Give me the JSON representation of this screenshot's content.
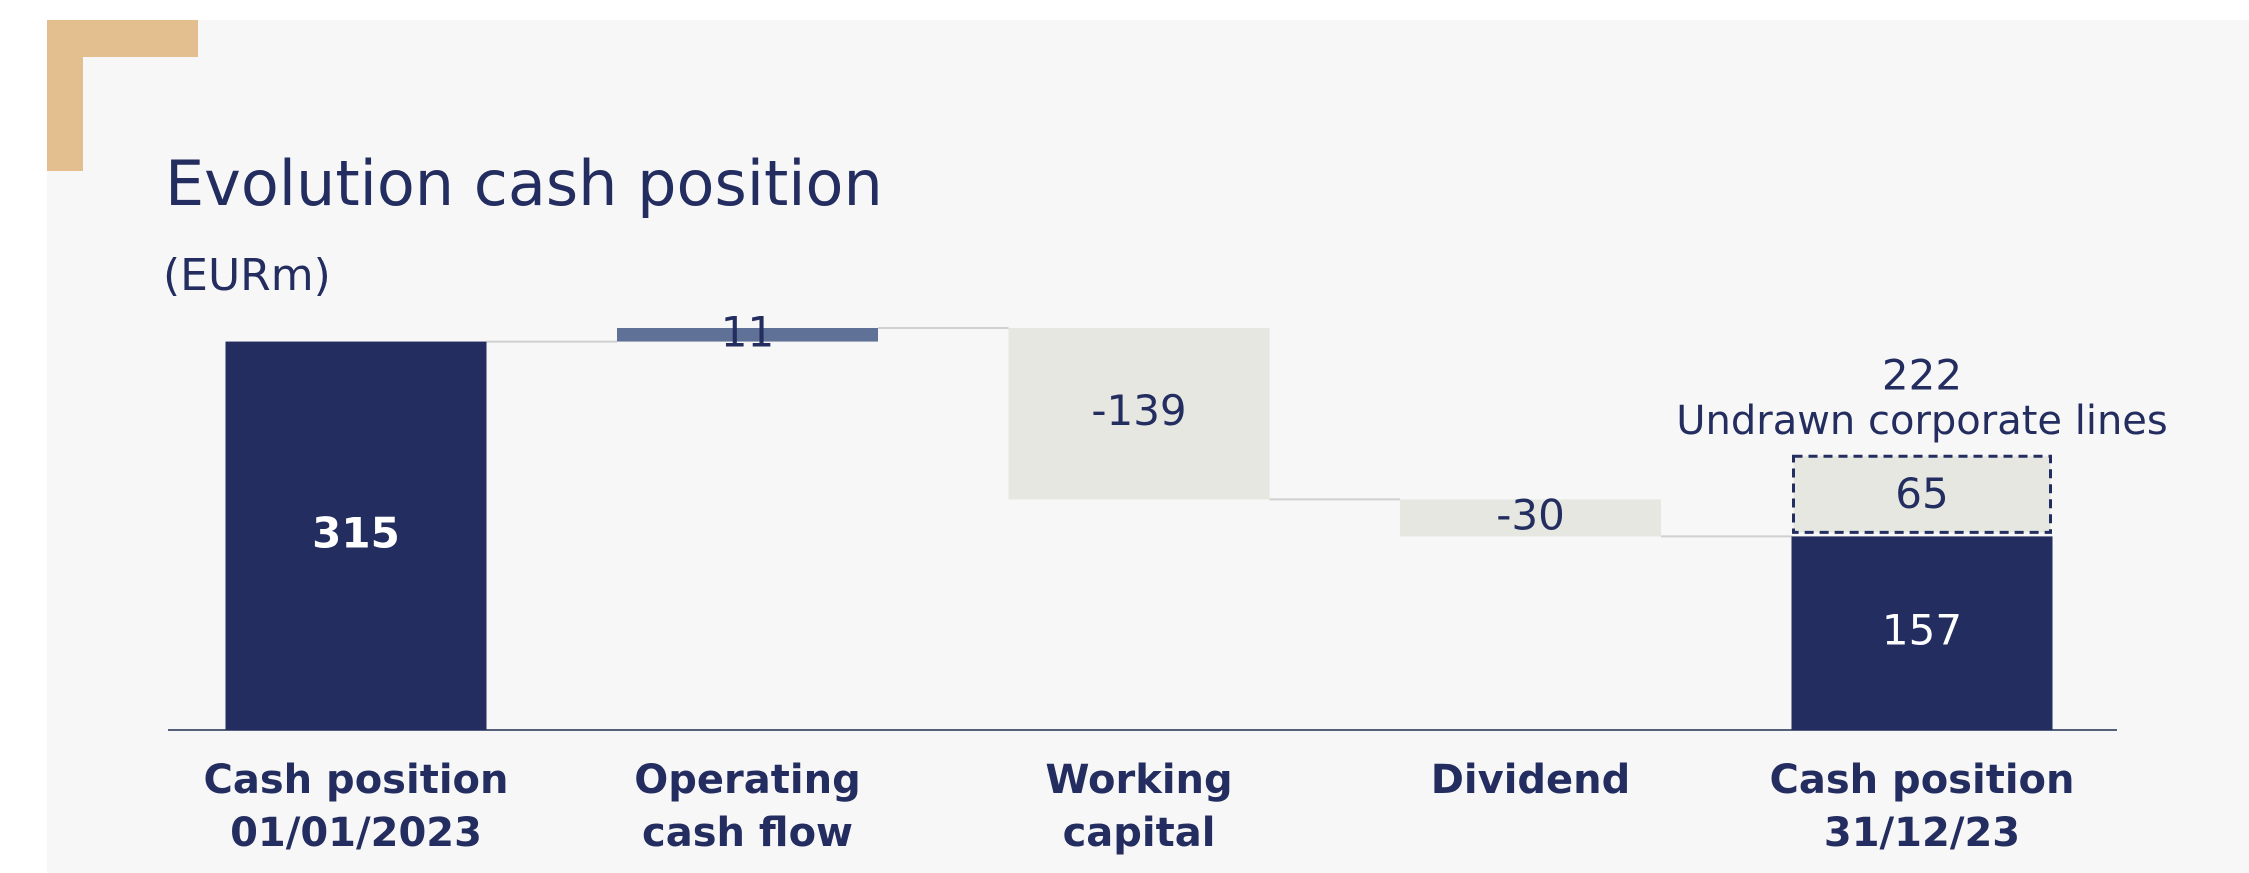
{
  "chart_data": {
    "type": "waterfall",
    "title": "Evolution cash position",
    "subtitle": "(EURm)",
    "categories": [
      [
        "Cash position",
        "01/01/2023"
      ],
      [
        "Operating",
        "cash flow"
      ],
      [
        "Working",
        "capital"
      ],
      [
        "Dividend"
      ],
      [
        "Cash position",
        "31/12/23"
      ]
    ],
    "values": [
      315,
      11,
      -139,
      -30,
      157
    ],
    "colors": [
      "#232d5f",
      "#5f7196",
      "#e6e7e1",
      "#e6e7e1",
      "#232d5f"
    ],
    "label_colors": [
      "#ffffff",
      "#232d5f",
      "#232d5f",
      "#232d5f",
      "#ffffff"
    ],
    "undrawn": {
      "value": 65,
      "total": 222,
      "label": "Undrawn corporate lines",
      "color": "#e6e7e1"
    }
  }
}
